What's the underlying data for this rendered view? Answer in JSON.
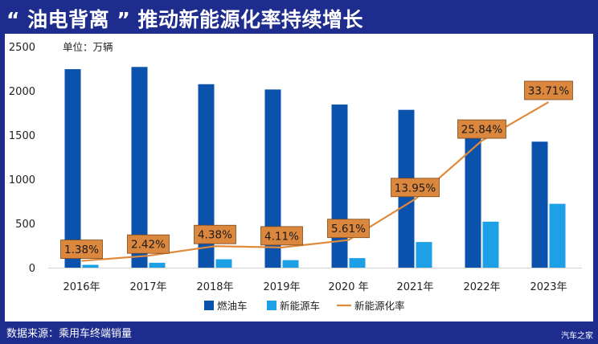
{
  "title": "“ 油电背离 ” 推动新能源化率持续增长",
  "unit_label": "单位：万辆",
  "source_label": "数据来源：乘用车终端销量",
  "logo_text": "汽车之家",
  "colors": {
    "background": "#1e2c8e",
    "fuel": "#0b52ac",
    "nev": "#1ea0e6",
    "rate_line": "#e08a3c",
    "rate_label_bg": "#db873d"
  },
  "chart_data": {
    "type": "bar",
    "categories": [
      "2016年",
      "2017年",
      "2018年",
      "2019年",
      "2020 年",
      "2021年",
      "2022年",
      "2023年"
    ],
    "series": [
      {
        "name": "燃油车",
        "type": "bar",
        "values": [
          2245,
          2270,
          2075,
          2015,
          1845,
          1785,
          1505,
          1425
        ]
      },
      {
        "name": "新能源车",
        "type": "bar",
        "values": [
          32,
          55,
          95,
          85,
          108,
          290,
          520,
          722
        ]
      },
      {
        "name": "新能源化率",
        "type": "line",
        "values": [
          1.38,
          2.42,
          4.38,
          4.11,
          5.61,
          13.95,
          25.84,
          33.71
        ],
        "labels": [
          "1.38%",
          "2.42%",
          "4.38%",
          "4.11%",
          "5.61%",
          "13.95%",
          "25.84%",
          "33.71%"
        ]
      }
    ],
    "ylim": [
      0,
      2500
    ],
    "yticks": [
      "0",
      "500",
      "1000",
      "1500",
      "2000",
      "2500"
    ],
    "rate_scale": [
      0,
      45
    ],
    "legend_position": "bottom",
    "grid": false
  }
}
